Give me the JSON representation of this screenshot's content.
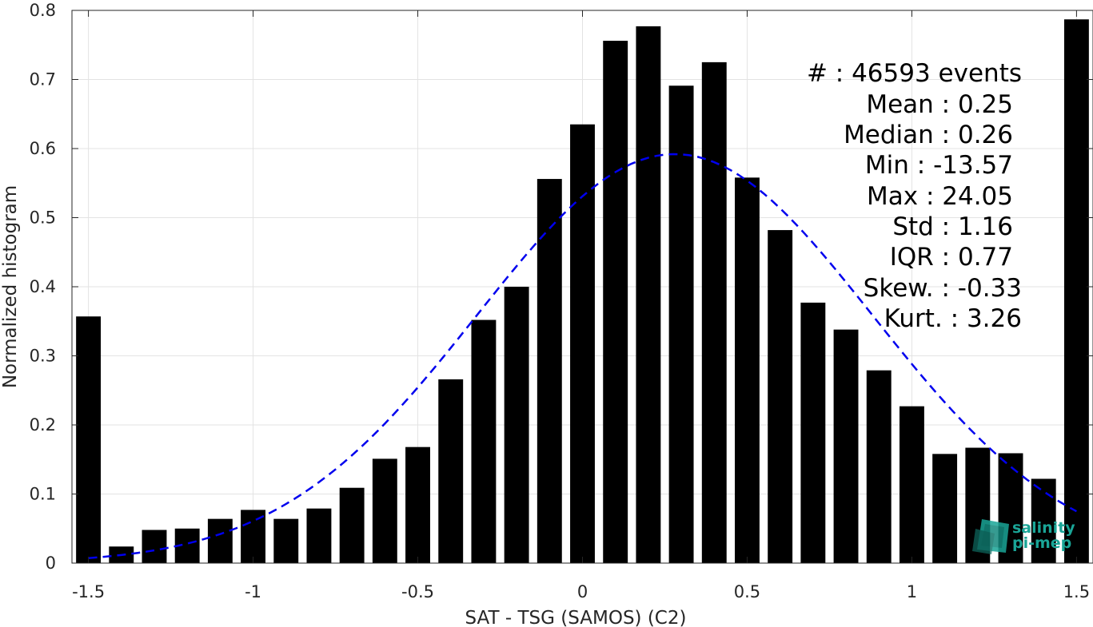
{
  "chart_data": {
    "type": "bar",
    "xlabel": "SAT - TSG (SAMOS) (C2)",
    "ylabel": "Normalized histogram",
    "xlim": [
      -1.55,
      1.55
    ],
    "ylim": [
      0,
      0.8
    ],
    "grid": true,
    "x_ticks": [
      -1.5,
      -1,
      -0.5,
      0,
      0.5,
      1,
      1.5
    ],
    "x_tick_labels": [
      "-1.5",
      "-1",
      "-0.5",
      "0",
      "0.5",
      "1",
      "1.5"
    ],
    "y_ticks": [
      0,
      0.1,
      0.2,
      0.3,
      0.4,
      0.5,
      0.6,
      0.7,
      0.8
    ],
    "y_tick_labels": [
      "0",
      "0.1",
      "0.2",
      "0.3",
      "0.4",
      "0.5",
      "0.6",
      "0.7",
      "0.8"
    ],
    "bar_width": 0.075,
    "x": [
      -1.5,
      -1.4,
      -1.3,
      -1.2,
      -1.1,
      -1.0,
      -0.9,
      -0.8,
      -0.7,
      -0.6,
      -0.5,
      -0.4,
      -0.3,
      -0.2,
      -0.1,
      0.0,
      0.1,
      0.2,
      0.3,
      0.4,
      0.5,
      0.6,
      0.7,
      0.8,
      0.9,
      1.0,
      1.1,
      1.2,
      1.3,
      1.4,
      1.5
    ],
    "values": [
      0.357,
      0.024,
      0.048,
      0.05,
      0.064,
      0.077,
      0.064,
      0.079,
      0.109,
      0.151,
      0.168,
      0.266,
      0.352,
      0.4,
      0.556,
      0.635,
      0.756,
      0.777,
      0.691,
      0.725,
      0.558,
      0.482,
      0.377,
      0.338,
      0.279,
      0.227,
      0.158,
      0.167,
      0.159,
      0.122,
      0.787
    ],
    "fit_curve": {
      "type": "gaussian",
      "mean": 0.28,
      "peak": 0.592,
      "std": 0.6,
      "x_range": [
        -1.5,
        1.5
      ],
      "color": "#0000ee",
      "style": "dashed"
    },
    "bar_color": "#000000",
    "annotations": [
      "#  : 46593 events",
      "Mean : 0.25",
      "Median : 0.26",
      "Min : -13.57",
      "Max : 24.05",
      "Std : 1.16",
      "IQR : 0.77",
      "Skew. : -0.33",
      "Kurt. : 3.26"
    ]
  },
  "logo": {
    "line1": "salinity",
    "line2": "pi-mep",
    "color": "#1aa597"
  }
}
